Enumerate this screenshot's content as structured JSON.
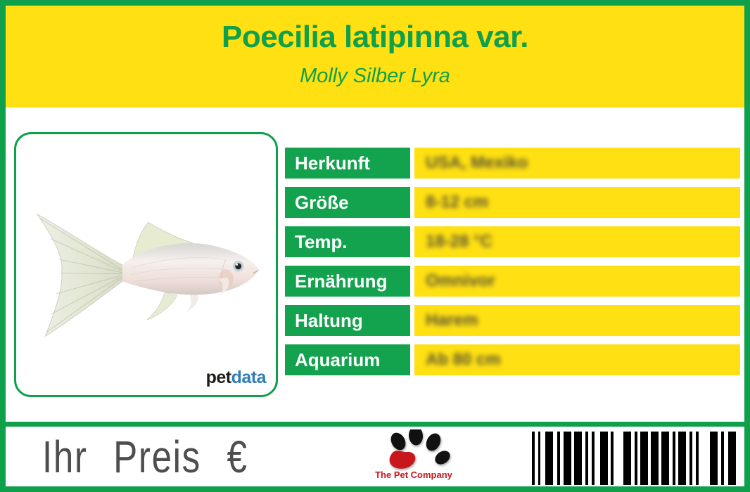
{
  "theme": {
    "green": "#0FA04C",
    "yellow": "#FFE012",
    "label_green": "#13A24D",
    "value_dark": "#3B3B3A",
    "price_gray": "#4E4E4E",
    "blue": "#2E7CB8",
    "red": "#C8161D",
    "ink": "#1C1C1A"
  },
  "header": {
    "title": "Poecilia latipinna var.",
    "subtitle": "Molly Silber Lyra"
  },
  "photo": {
    "subject": "silver lyretail molly fish, side view facing right",
    "brand": {
      "pet": "pet",
      "data": "data"
    }
  },
  "table": {
    "rows": [
      {
        "label": "Herkunft",
        "value": "USA, Mexiko"
      },
      {
        "label": "Größe",
        "value": "8-12 cm"
      },
      {
        "label": "Temp.",
        "value": "18-28 °C"
      },
      {
        "label": "Ernährung",
        "value": "Omnivor"
      },
      {
        "label": "Haltung",
        "value": "Harem"
      },
      {
        "label": "Aquarium",
        "value": "Ab 80 cm"
      }
    ],
    "values_blurred": true
  },
  "footer": {
    "price_label": "Ihr Preis €",
    "company": "The Pet Company"
  },
  "barcode": {
    "bars": [
      [
        4,
        5
      ],
      [
        3,
        7
      ],
      [
        11,
        6
      ],
      [
        4,
        5
      ],
      [
        11,
        4
      ],
      [
        11,
        5
      ],
      [
        4,
        5
      ],
      [
        4,
        8
      ],
      [
        11,
        4
      ],
      [
        4,
        14
      ],
      [
        11,
        5
      ],
      [
        4,
        4
      ],
      [
        11,
        4
      ],
      [
        11,
        4
      ],
      [
        11,
        5
      ],
      [
        4,
        4
      ],
      [
        11,
        5
      ],
      [
        4,
        5
      ],
      [
        4,
        16
      ],
      [
        11,
        5
      ],
      [
        4,
        6
      ],
      [
        11,
        0
      ]
    ]
  }
}
